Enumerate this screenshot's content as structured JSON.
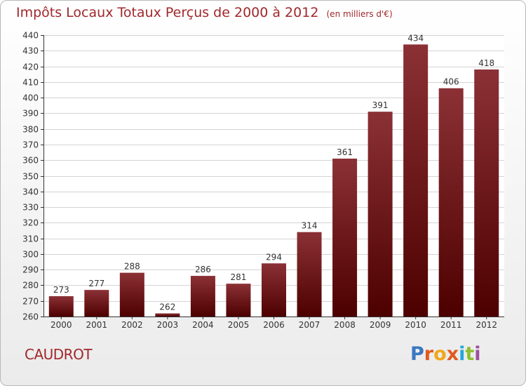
{
  "title": "Impôts Locaux Totaux Perçus de 2000 à 2012",
  "subtitle": "(en milliers d'€)",
  "place": "CAUDROT",
  "logo": "Proxiti",
  "colors": {
    "bar_top": "#8b3136",
    "bar_bottom": "#4d0000",
    "title": "#a0282c"
  },
  "chart_data": {
    "type": "bar",
    "categories": [
      "2000",
      "2001",
      "2002",
      "2003",
      "2004",
      "2005",
      "2006",
      "2007",
      "2008",
      "2009",
      "2010",
      "2011",
      "2012"
    ],
    "values": [
      273,
      277,
      288,
      262,
      286,
      281,
      294,
      314,
      361,
      391,
      434,
      406,
      418
    ],
    "ylim": [
      260,
      440
    ],
    "yticks": [
      260,
      270,
      280,
      290,
      300,
      310,
      320,
      330,
      340,
      350,
      360,
      370,
      380,
      390,
      400,
      410,
      420,
      430,
      440
    ],
    "grid": true,
    "data_labels": true
  }
}
